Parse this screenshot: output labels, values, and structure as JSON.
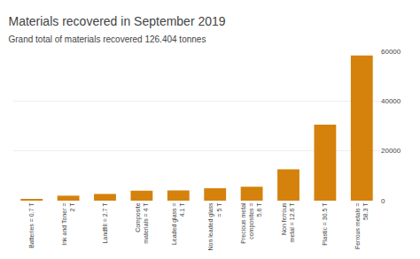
{
  "chart_data": {
    "type": "bar",
    "title": "Materials recovered in September 2019",
    "subtitle": "Grand total of materials recovered 126.404 tonnes",
    "categories": [
      "Batteries = 0.7 T",
      "Ink and Toner =\n2 T",
      "Landfill = 2.7 T",
      "Composite\nmaterials = 4 T",
      "Leaded glass =\n4.1 T",
      "Non leaded glass\n= 5 T",
      "Precious metal\ncomposites =\n5.6 T",
      "Non ferrous\nmetal = 12.6 T",
      "Plastic = 30.5 T",
      "Ferrous metals =\n58.3 T"
    ],
    "values": [
      700,
      2000,
      2700,
      4000,
      4100,
      5000,
      5600,
      12600,
      30500,
      58300
    ],
    "color": "#d4820c",
    "ylim": [
      0,
      60000
    ],
    "yticks": [
      0,
      20000,
      40000,
      60000
    ],
    "grid": true
  }
}
